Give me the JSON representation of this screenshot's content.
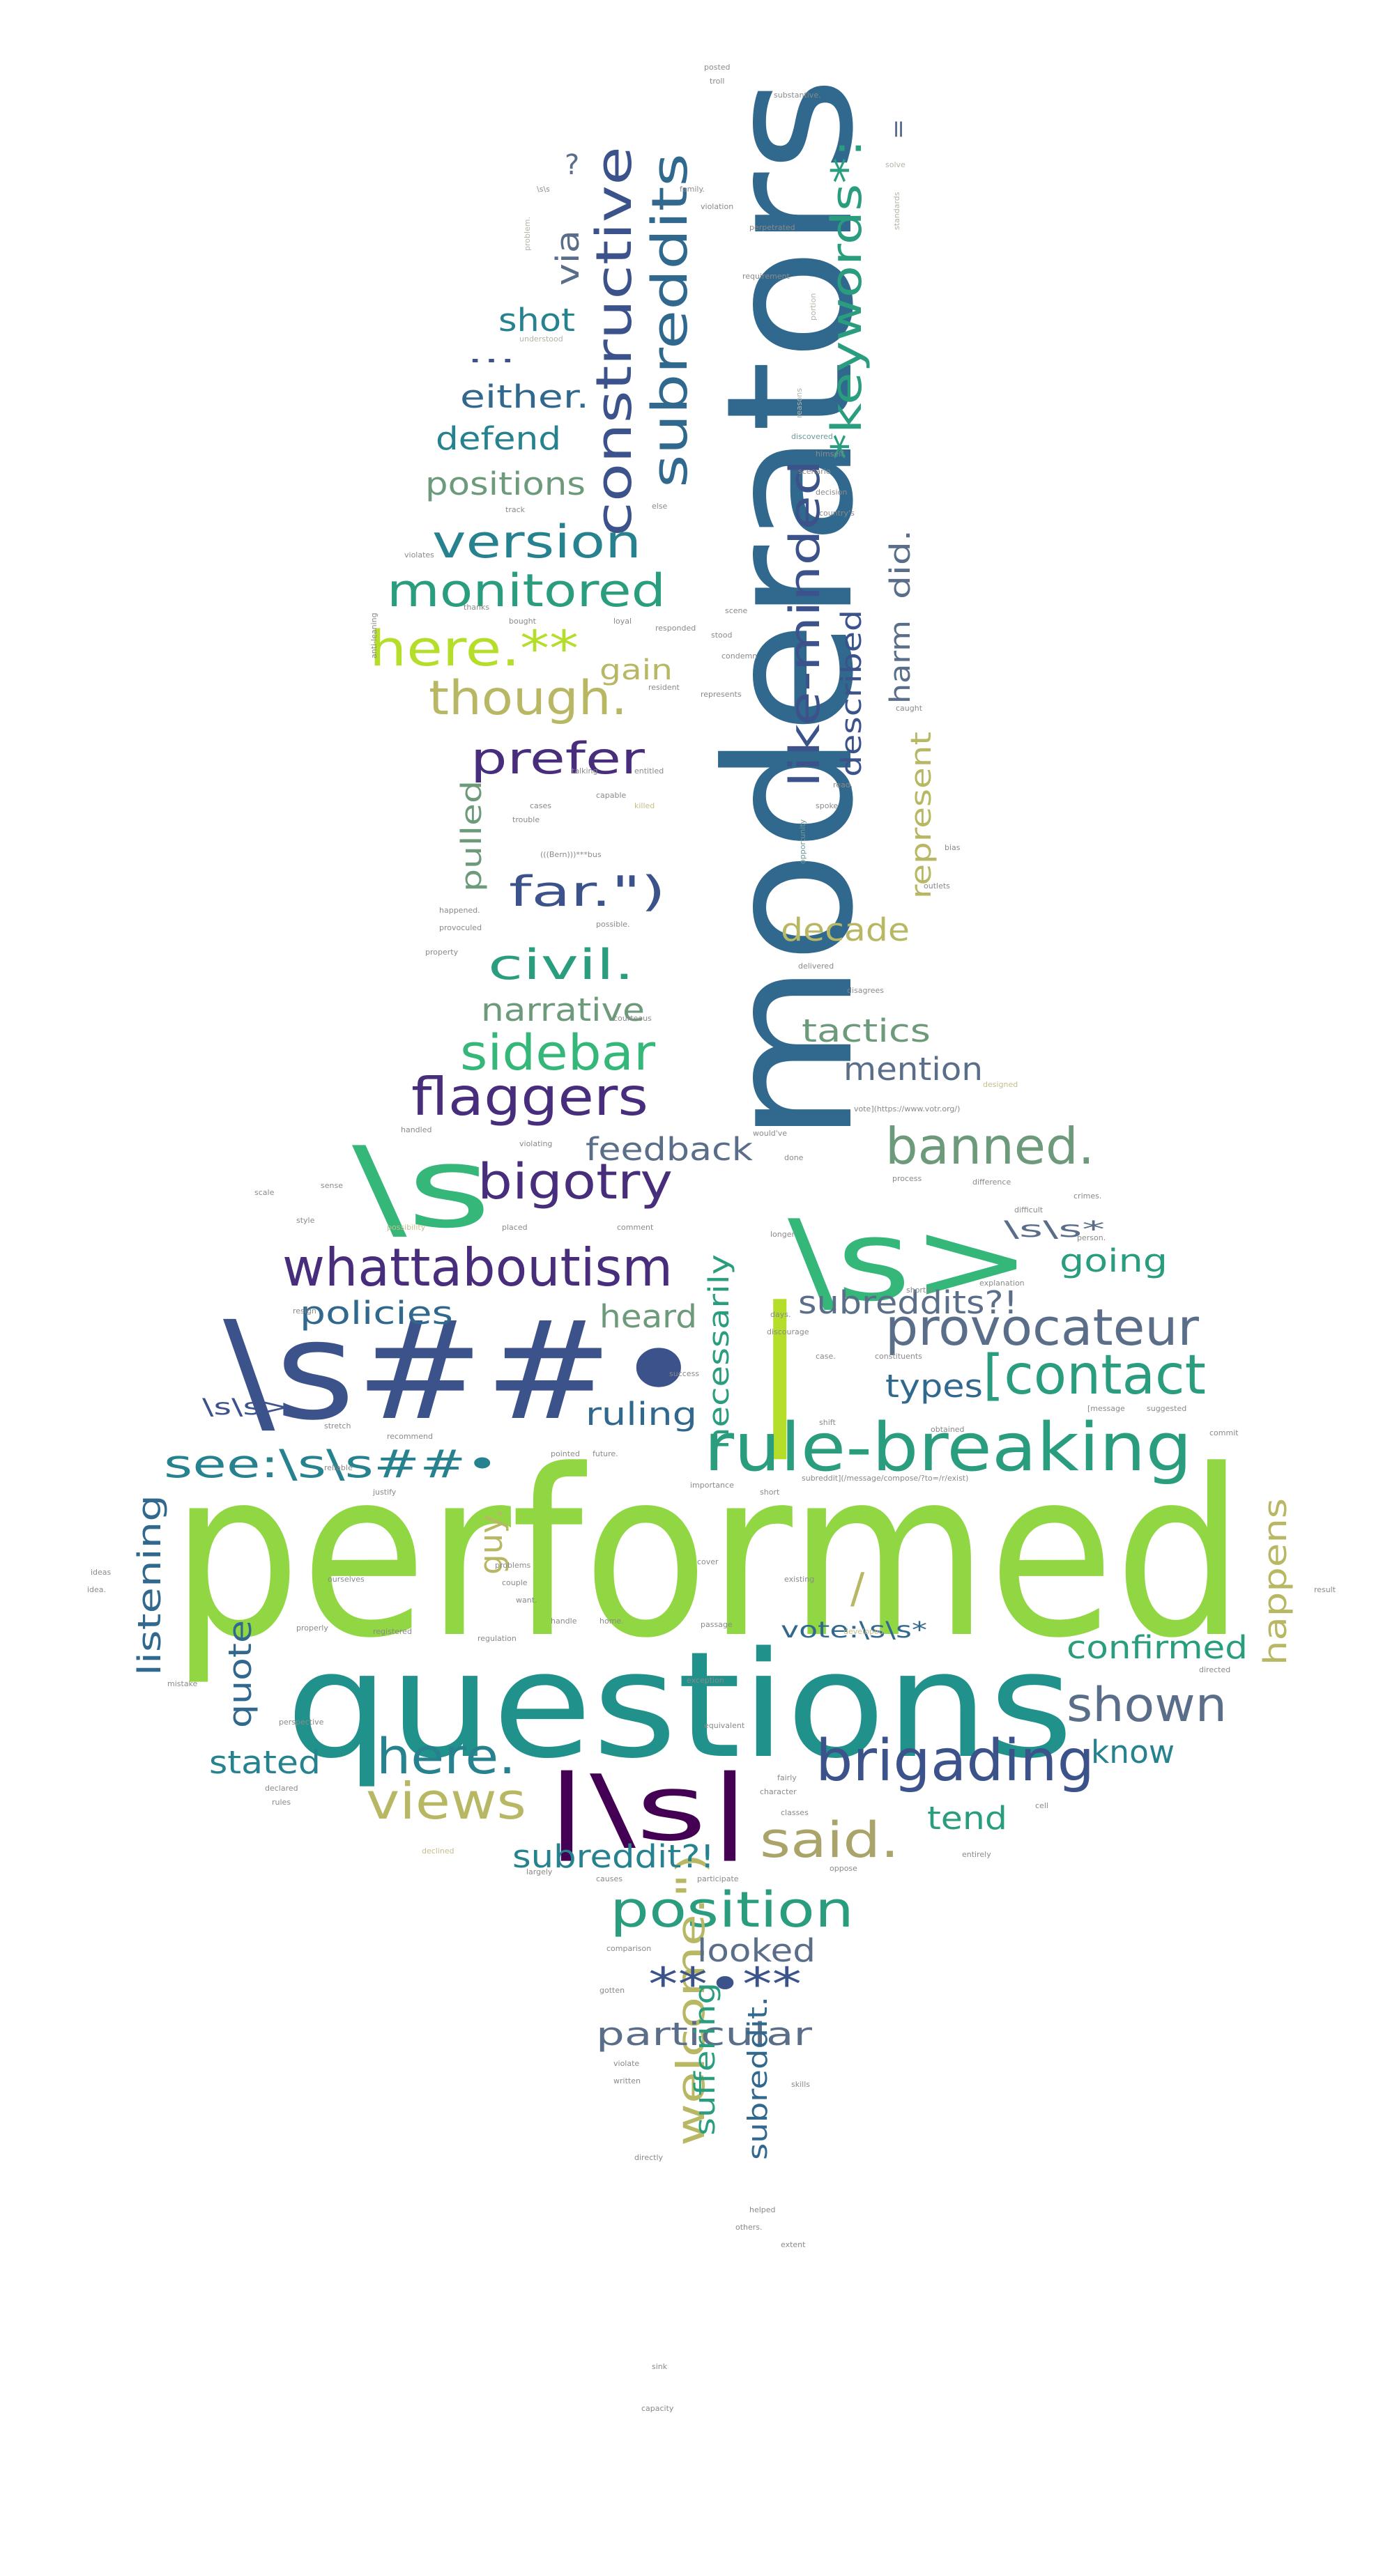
{
  "palette": {
    "dark_purple": "#472d7b",
    "deep_purple": "#440154",
    "slate_blue": "#3b528b",
    "steel_blue": "#31688e",
    "teal": "#21918c",
    "teal_blue": "#26828e",
    "sea_green": "#2a9d7f",
    "green": "#35b779",
    "light_green": "#6ece58",
    "lime": "#90d743",
    "yellow_green": "#b5de2b",
    "olive": "#b8b864",
    "khaki": "#aaa46b",
    "sage": "#6d9a7a",
    "gray_blue": "#5a6e8a",
    "dim_gray": "#8a8a8a",
    "pale_gray": "#b0b6a8",
    "muted_teal": "#6a9a98",
    "sand": "#c5bf8c"
  },
  "words": [
    {
      "text": "performed",
      "color": "lime"
    },
    {
      "text": "questions",
      "color": "teal"
    },
    {
      "text": "moderators",
      "color": "steel_blue"
    },
    {
      "text": "\\s##•",
      "color": "slate_blue"
    },
    {
      "text": "|",
      "color": "yellow_green"
    },
    {
      "text": "\\s>",
      "color": "green"
    },
    {
      "text": "\\s",
      "color": "green"
    },
    {
      "text": "|\\s|",
      "color": "deep_purple"
    },
    {
      "text": "rule-breaking",
      "color": "sea_green"
    },
    {
      "text": "provocateur",
      "color": "gray_blue"
    },
    {
      "text": "[contact",
      "color": "sea_green"
    },
    {
      "text": "whattaboutism",
      "color": "dark_purple"
    },
    {
      "text": "brigading",
      "color": "slate_blue"
    },
    {
      "text": "position",
      "color": "sea_green"
    },
    {
      "text": "flaggers",
      "color": "dark_purple"
    },
    {
      "text": "sidebar",
      "color": "green"
    },
    {
      "text": "bigotry",
      "color": "dark_purple"
    },
    {
      "text": "banned.",
      "color": "sage"
    },
    {
      "text": "see:\\s\\s##•",
      "color": "teal_blue"
    },
    {
      "text": "views",
      "color": "olive"
    },
    {
      "text": "here.",
      "color": "teal_blue"
    },
    {
      "text": "said.",
      "color": "khaki"
    },
    {
      "text": "shown",
      "color": "gray_blue"
    },
    {
      "text": "constructive",
      "color": "slate_blue"
    },
    {
      "text": "subreddits",
      "color": "steel_blue"
    },
    {
      "text": "*keywords*:",
      "color": "sea_green"
    },
    {
      "text": "like-minded",
      "color": "slate_blue"
    },
    {
      "text": "version",
      "color": "teal_blue"
    },
    {
      "text": "monitored",
      "color": "sea_green"
    },
    {
      "text": "here.**",
      "color": "yellow_green"
    },
    {
      "text": "though.",
      "color": "olive"
    },
    {
      "text": "prefer",
      "color": "dark_purple"
    },
    {
      "text": "far.\")",
      "color": "slate_blue"
    },
    {
      "text": "civil.",
      "color": "sea_green"
    },
    {
      "text": "welcome.\")",
      "color": "olive"
    },
    {
      "text": "**•**",
      "color": "slate_blue"
    },
    {
      "text": "particular",
      "color": "gray_blue"
    },
    {
      "text": "subreddit?!",
      "color": "teal_blue"
    },
    {
      "text": "subreddits?!",
      "color": "gray_blue"
    },
    {
      "text": "confirmed",
      "color": "sea_green"
    },
    {
      "text": "policies",
      "color": "steel_blue"
    },
    {
      "text": "feedback",
      "color": "gray_blue"
    },
    {
      "text": "positions",
      "color": "sage"
    },
    {
      "text": "defend",
      "color": "teal_blue"
    },
    {
      "text": "either.",
      "color": "steel_blue"
    },
    {
      "text": "shot",
      "color": "teal_blue"
    },
    {
      "text": "via",
      "color": "gray_blue"
    },
    {
      "text": "narrative",
      "color": "sage"
    },
    {
      "text": "decade",
      "color": "olive"
    },
    {
      "text": "tactics",
      "color": "sage"
    },
    {
      "text": "mention",
      "color": "gray_blue"
    },
    {
      "text": "going",
      "color": "sea_green"
    },
    {
      "text": "heard",
      "color": "sage"
    },
    {
      "text": "ruling",
      "color": "steel_blue"
    },
    {
      "text": "types",
      "color": "steel_blue"
    },
    {
      "text": "stated",
      "color": "teal_blue"
    },
    {
      "text": "looked",
      "color": "gray_blue"
    },
    {
      "text": "tend",
      "color": "sea_green"
    },
    {
      "text": "know",
      "color": "teal_blue"
    },
    {
      "text": "quote",
      "color": "steel_blue"
    },
    {
      "text": "guy.",
      "color": "olive"
    },
    {
      "text": "listening",
      "color": "steel_blue"
    },
    {
      "text": "happens",
      "color": "olive"
    },
    {
      "text": "necessarily",
      "color": "sea_green"
    },
    {
      "text": "represent",
      "color": "olive"
    },
    {
      "text": "pulled",
      "color": "sage"
    },
    {
      "text": "described",
      "color": "slate_blue"
    },
    {
      "text": "harm",
      "color": "gray_blue"
    },
    {
      "text": "did.",
      "color": "gray_blue"
    },
    {
      "text": "gain",
      "color": "olive"
    },
    {
      "text": "suffering",
      "color": "sea_green"
    },
    {
      "text": "subreddit.",
      "color": "steel_blue"
    },
    {
      "text": "vote:\\s\\s*",
      "color": "steel_blue"
    },
    {
      "text": "\\s\\s*",
      "color": "gray_blue"
    },
    {
      "text": "\\s\\s>",
      "color": "slate_blue"
    },
    {
      "text": "?",
      "color": "gray_blue"
    },
    {
      "text": "/",
      "color": "olive"
    },
    {
      "text": "=",
      "color": "gray_blue"
    },
    {
      "text": "...",
      "color": "slate_blue"
    },
    {
      "text": "posted",
      "color": "dim_gray"
    },
    {
      "text": "troll",
      "color": "dim_gray"
    },
    {
      "text": "substantive.",
      "color": "dim_gray"
    },
    {
      "text": "family.",
      "color": "dim_gray"
    },
    {
      "text": "violation",
      "color": "dim_gray"
    },
    {
      "text": "perpetrated",
      "color": "dim_gray"
    },
    {
      "text": "requirement",
      "color": "dim_gray"
    },
    {
      "text": "solve",
      "color": "pale_gray"
    },
    {
      "text": "standards",
      "color": "pale_gray"
    },
    {
      "text": "problem.",
      "color": "pale_gray"
    },
    {
      "text": "understood",
      "color": "pale_gray"
    },
    {
      "text": "portion",
      "color": "pale_gray"
    },
    {
      "text": "reasons",
      "color": "pale_gray"
    },
    {
      "text": "discovered",
      "color": "muted_teal"
    },
    {
      "text": "himself.",
      "color": "dim_gray"
    },
    {
      "text": "scenario",
      "color": "dim_gray"
    },
    {
      "text": "decision",
      "color": "dim_gray"
    },
    {
      "text": "country's",
      "color": "dim_gray"
    },
    {
      "text": "track",
      "color": "dim_gray"
    },
    {
      "text": "else",
      "color": "dim_gray"
    },
    {
      "text": "violates",
      "color": "dim_gray"
    },
    {
      "text": "thanks",
      "color": "dim_gray"
    },
    {
      "text": "bought",
      "color": "dim_gray"
    },
    {
      "text": "loyal",
      "color": "dim_gray"
    },
    {
      "text": "responded",
      "color": "dim_gray"
    },
    {
      "text": "scene",
      "color": "dim_gray"
    },
    {
      "text": "stood",
      "color": "dim_gray"
    },
    {
      "text": "condemn",
      "color": "dim_gray"
    },
    {
      "text": "resident",
      "color": "dim_gray"
    },
    {
      "text": "represents",
      "color": "dim_gray"
    },
    {
      "text": "caught",
      "color": "dim_gray"
    },
    {
      "text": "talking",
      "color": "dim_gray"
    },
    {
      "text": "entitled",
      "color": "dim_gray"
    },
    {
      "text": "capable",
      "color": "dim_gray"
    },
    {
      "text": "cases",
      "color": "dim_gray"
    },
    {
      "text": "trouble",
      "color": "dim_gray"
    },
    {
      "text": "killed",
      "color": "sand"
    },
    {
      "text": "spoke",
      "color": "dim_gray"
    },
    {
      "text": "read.",
      "color": "dim_gray"
    },
    {
      "text": "bias",
      "color": "dim_gray"
    },
    {
      "text": "opportunity",
      "color": "muted_teal"
    },
    {
      "text": "(((Bern)))***bus",
      "color": "dim_gray"
    },
    {
      "text": "happened.",
      "color": "dim_gray"
    },
    {
      "text": "provoculed",
      "color": "dim_gray"
    },
    {
      "text": "possible.",
      "color": "dim_gray"
    },
    {
      "text": "property",
      "color": "dim_gray"
    },
    {
      "text": "outlets",
      "color": "dim_gray"
    },
    {
      "text": "delivered",
      "color": "dim_gray"
    },
    {
      "text": "disagrees",
      "color": "dim_gray"
    },
    {
      "text": "courteous",
      "color": "dim_gray"
    },
    {
      "text": "designed",
      "color": "sand"
    },
    {
      "text": "vote](https://www.votr.org/)",
      "color": "dim_gray"
    },
    {
      "text": "handled",
      "color": "dim_gray"
    },
    {
      "text": "violating",
      "color": "dim_gray"
    },
    {
      "text": "would've",
      "color": "dim_gray"
    },
    {
      "text": "done",
      "color": "dim_gray"
    },
    {
      "text": "process",
      "color": "dim_gray"
    },
    {
      "text": "difference",
      "color": "dim_gray"
    },
    {
      "text": "crimes.",
      "color": "dim_gray"
    },
    {
      "text": "scale",
      "color": "dim_gray"
    },
    {
      "text": "sense",
      "color": "dim_gray"
    },
    {
      "text": "style",
      "color": "dim_gray"
    },
    {
      "text": "possibility",
      "color": "sand"
    },
    {
      "text": "placed",
      "color": "dim_gray"
    },
    {
      "text": "comment",
      "color": "dim_gray"
    },
    {
      "text": "longer",
      "color": "dim_gray"
    },
    {
      "text": "difficult",
      "color": "dim_gray"
    },
    {
      "text": "person.",
      "color": "dim_gray"
    },
    {
      "text": "resign",
      "color": "dim_gray"
    },
    {
      "text": "shorter",
      "color": "dim_gray"
    },
    {
      "text": "explanation",
      "color": "dim_gray"
    },
    {
      "text": "days.",
      "color": "dim_gray"
    },
    {
      "text": "discourage",
      "color": "dim_gray"
    },
    {
      "text": "constituents",
      "color": "dim_gray"
    },
    {
      "text": "case.",
      "color": "dim_gray"
    },
    {
      "text": "success",
      "color": "dim_gray"
    },
    {
      "text": "stretch",
      "color": "dim_gray"
    },
    {
      "text": "recommend",
      "color": "dim_gray"
    },
    {
      "text": "shift",
      "color": "dim_gray"
    },
    {
      "text": "obtained",
      "color": "dim_gray"
    },
    {
      "text": "[message",
      "color": "dim_gray"
    },
    {
      "text": "suggested",
      "color": "dim_gray"
    },
    {
      "text": "commit",
      "color": "dim_gray"
    },
    {
      "text": "reliable",
      "color": "dim_gray"
    },
    {
      "text": "pointed",
      "color": "dim_gray"
    },
    {
      "text": "future.",
      "color": "dim_gray"
    },
    {
      "text": "justify",
      "color": "dim_gray"
    },
    {
      "text": "importance",
      "color": "dim_gray"
    },
    {
      "text": "short",
      "color": "dim_gray"
    },
    {
      "text": "subreddit](/message/compose/?to=/r/exist)",
      "color": "dim_gray"
    },
    {
      "text": "ideas",
      "color": "dim_gray"
    },
    {
      "text": "idea.",
      "color": "dim_gray"
    },
    {
      "text": "ourselves",
      "color": "dim_gray"
    },
    {
      "text": "problems",
      "color": "dim_gray"
    },
    {
      "text": "couple",
      "color": "dim_gray"
    },
    {
      "text": "want.",
      "color": "dim_gray"
    },
    {
      "text": "handle",
      "color": "dim_gray"
    },
    {
      "text": "home.",
      "color": "dim_gray"
    },
    {
      "text": "cover",
      "color": "dim_gray"
    },
    {
      "text": "existing",
      "color": "dim_gray"
    },
    {
      "text": "result",
      "color": "dim_gray"
    },
    {
      "text": "properly",
      "color": "dim_gray"
    },
    {
      "text": "registered",
      "color": "dim_gray"
    },
    {
      "text": "regulation",
      "color": "dim_gray"
    },
    {
      "text": "passage",
      "color": "dim_gray"
    },
    {
      "text": "developed",
      "color": "sand"
    },
    {
      "text": "mistake",
      "color": "dim_gray"
    },
    {
      "text": "directed",
      "color": "dim_gray"
    },
    {
      "text": "exception",
      "color": "dim_gray"
    },
    {
      "text": "perspective",
      "color": "dim_gray"
    },
    {
      "text": "equivalent",
      "color": "dim_gray"
    },
    {
      "text": "fairly",
      "color": "dim_gray"
    },
    {
      "text": "character",
      "color": "dim_gray"
    },
    {
      "text": "declared",
      "color": "dim_gray"
    },
    {
      "text": "rules",
      "color": "dim_gray"
    },
    {
      "text": "cell",
      "color": "dim_gray"
    },
    {
      "text": "declined",
      "color": "sand"
    },
    {
      "text": "largely",
      "color": "dim_gray"
    },
    {
      "text": "causes",
      "color": "dim_gray"
    },
    {
      "text": "participate",
      "color": "dim_gray"
    },
    {
      "text": "oppose",
      "color": "dim_gray"
    },
    {
      "text": "entirely",
      "color": "dim_gray"
    },
    {
      "text": "comparison",
      "color": "dim_gray"
    },
    {
      "text": "gotten",
      "color": "dim_gray"
    },
    {
      "text": "violate",
      "color": "dim_gray"
    },
    {
      "text": "written",
      "color": "dim_gray"
    },
    {
      "text": "skills",
      "color": "dim_gray"
    },
    {
      "text": "directly",
      "color": "dim_gray"
    },
    {
      "text": "helped",
      "color": "dim_gray"
    },
    {
      "text": "others.",
      "color": "dim_gray"
    },
    {
      "text": "extent",
      "color": "dim_gray"
    },
    {
      "text": "sink",
      "color": "dim_gray"
    },
    {
      "text": "capacity",
      "color": "dim_gray"
    },
    {
      "text": "anti-leaning",
      "color": "dim_gray"
    },
    {
      "text": "classes",
      "color": "dim_gray"
    },
    {
      "text": "\\s\\s",
      "color": "dim_gray"
    }
  ]
}
